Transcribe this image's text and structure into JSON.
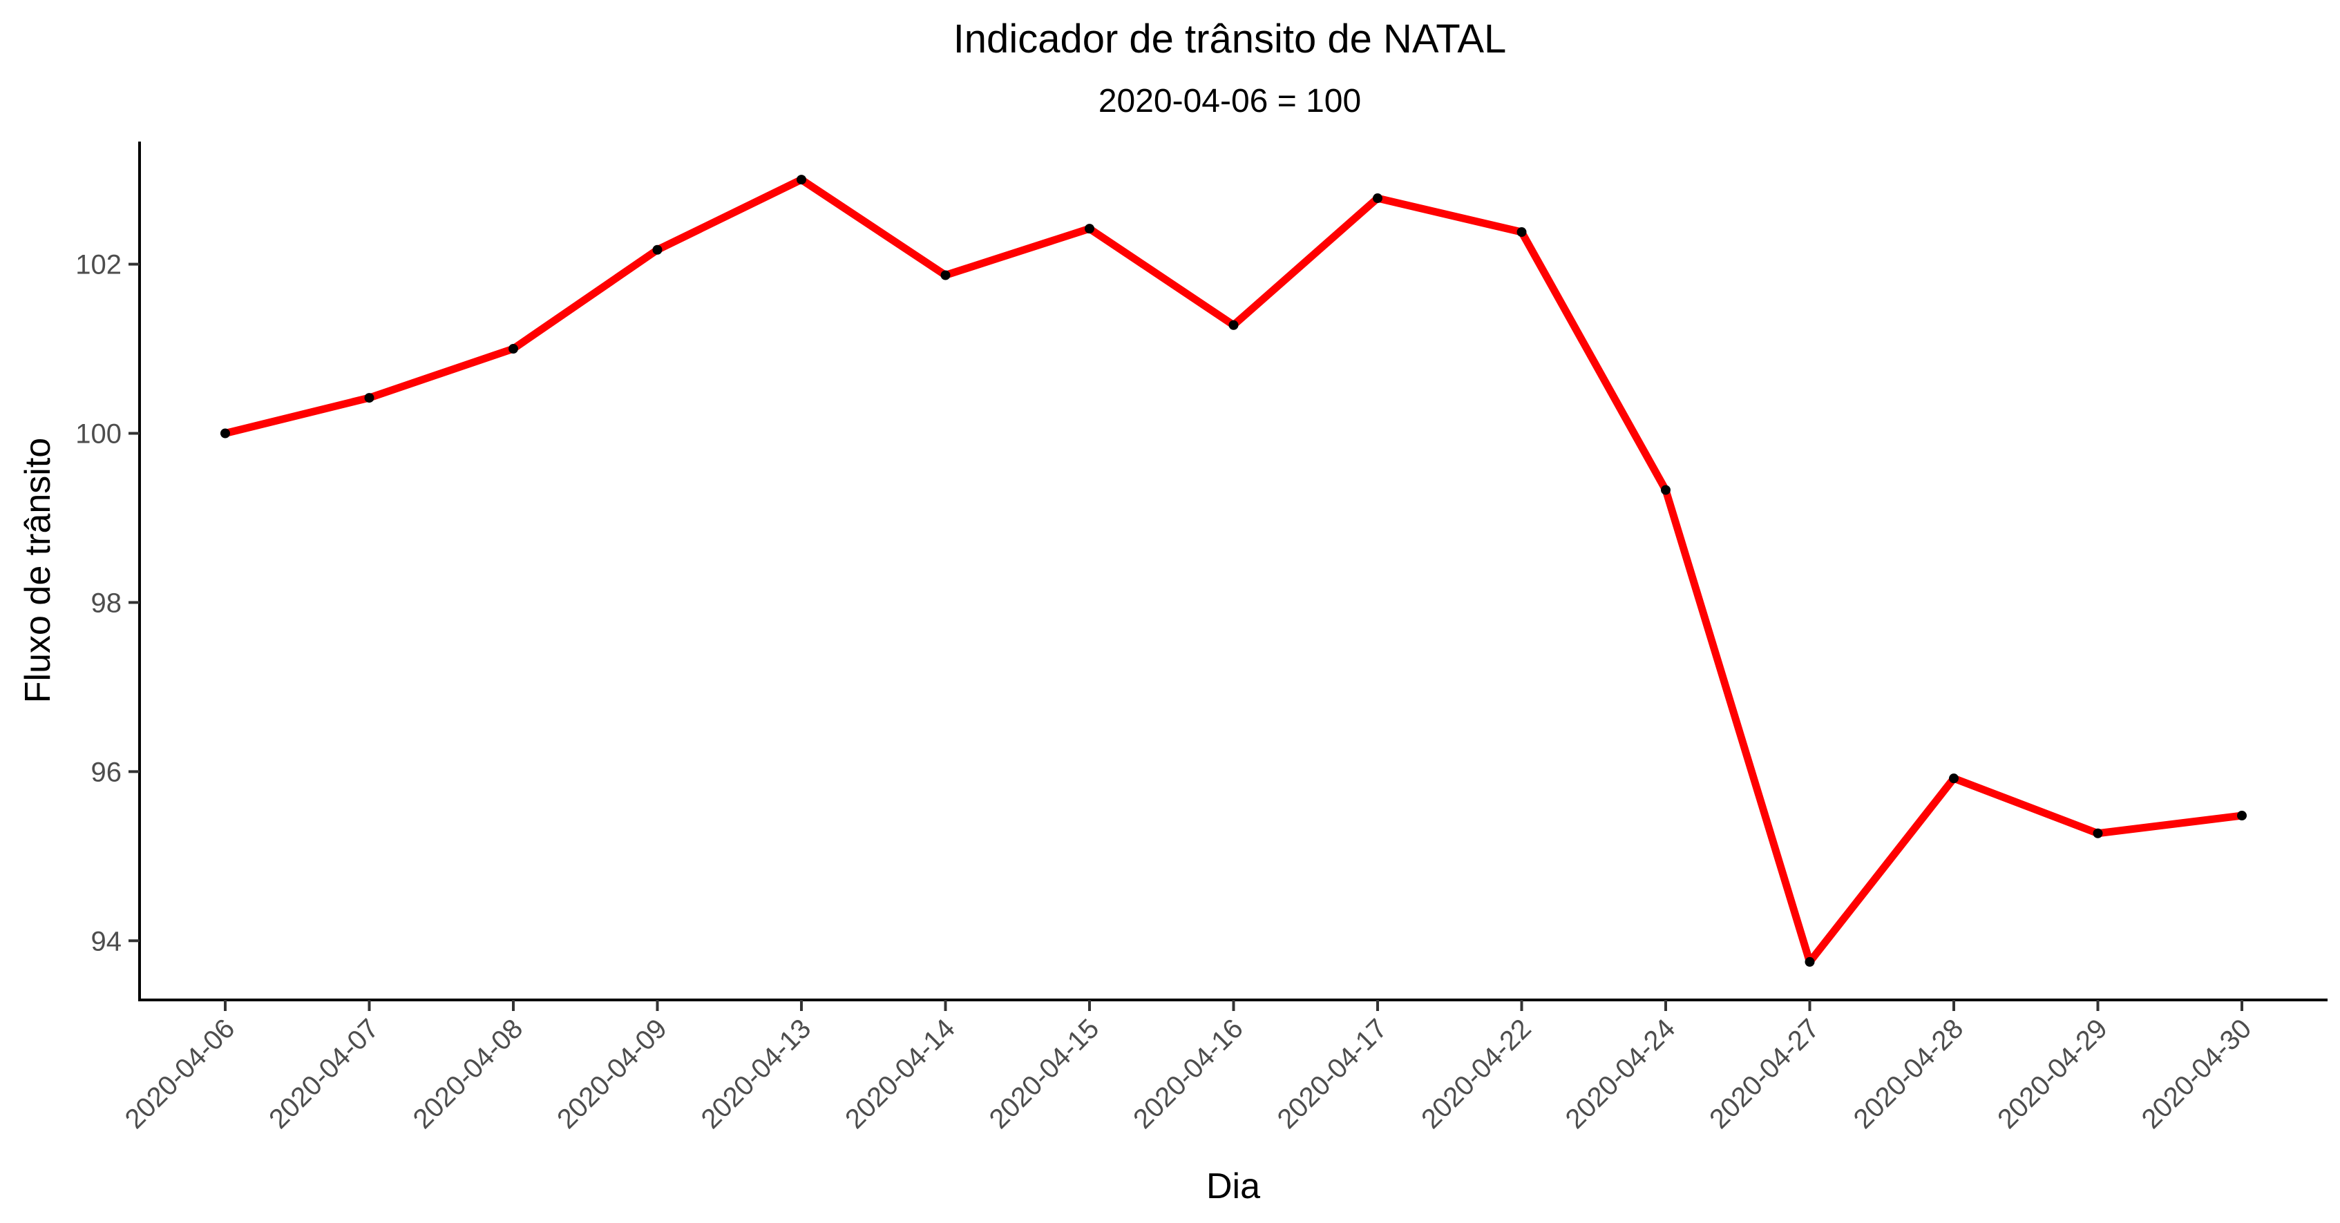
{
  "chart_data": {
    "type": "line",
    "title": "Indicador de trânsito de NATAL",
    "subtitle": "2020-04-06 = 100",
    "xlabel": "Dia",
    "ylabel": "Fluxo de trânsito",
    "categories": [
      "2020-04-06",
      "2020-04-07",
      "2020-04-08",
      "2020-04-09",
      "2020-04-13",
      "2020-04-14",
      "2020-04-15",
      "2020-04-16",
      "2020-04-17",
      "2020-04-22",
      "2020-04-24",
      "2020-04-27",
      "2020-04-28",
      "2020-04-29",
      "2020-04-30"
    ],
    "series": [
      {
        "values": [
          100.0,
          100.42,
          101.0,
          102.17,
          103.0,
          101.87,
          102.42,
          101.28,
          102.78,
          102.38,
          99.33,
          93.75,
          95.92,
          95.27,
          95.48
        ]
      }
    ],
    "ylim": [
      93.3,
      103.45
    ],
    "yticks": [
      94,
      96,
      98,
      100,
      102
    ],
    "grid": false,
    "legend": "none",
    "colors": {
      "line": "#ff0000",
      "points": "#000000",
      "axis": "#000000",
      "tick_text": "#4d4d4d"
    }
  }
}
